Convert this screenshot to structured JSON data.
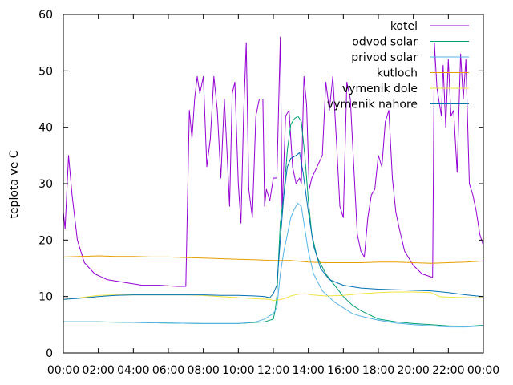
{
  "chart_data": {
    "type": "line",
    "title": "",
    "xlabel": "",
    "ylabel": "teplota ve C",
    "ylim": [
      0,
      60
    ],
    "xlim": [
      0,
      24
    ],
    "x_unit": "hours",
    "yticks": [
      "0",
      "10",
      "20",
      "30",
      "40",
      "50",
      "60"
    ],
    "xticks": [
      "00:00",
      "02:00",
      "04:00",
      "06:00",
      "08:00",
      "10:00",
      "12:00",
      "14:00",
      "16:00",
      "18:00",
      "20:00",
      "22:00",
      "00:00"
    ],
    "grid": false,
    "legend_position": "top-right",
    "series": [
      {
        "name": "kotel",
        "color": "#9400d3",
        "points": [
          [
            0,
            25
          ],
          [
            0.1,
            22
          ],
          [
            0.3,
            35
          ],
          [
            0.5,
            28
          ],
          [
            0.8,
            20
          ],
          [
            1.2,
            16
          ],
          [
            1.8,
            14
          ],
          [
            2.5,
            13
          ],
          [
            3.5,
            12.5
          ],
          [
            4.5,
            12
          ],
          [
            5.5,
            12
          ],
          [
            6.5,
            11.8
          ],
          [
            7.0,
            11.8
          ],
          [
            7.2,
            43
          ],
          [
            7.35,
            38
          ],
          [
            7.5,
            45
          ],
          [
            7.65,
            49
          ],
          [
            7.8,
            46
          ],
          [
            8.0,
            49
          ],
          [
            8.2,
            33
          ],
          [
            8.4,
            38
          ],
          [
            8.6,
            49
          ],
          [
            8.8,
            43
          ],
          [
            9.0,
            31
          ],
          [
            9.2,
            45
          ],
          [
            9.35,
            36
          ],
          [
            9.5,
            26
          ],
          [
            9.65,
            46
          ],
          [
            9.8,
            48
          ],
          [
            10.0,
            30
          ],
          [
            10.15,
            23
          ],
          [
            10.3,
            42
          ],
          [
            10.45,
            55
          ],
          [
            10.6,
            29
          ],
          [
            10.8,
            24
          ],
          [
            11.0,
            42
          ],
          [
            11.2,
            45
          ],
          [
            11.4,
            45
          ],
          [
            11.5,
            26
          ],
          [
            11.6,
            29
          ],
          [
            11.8,
            27
          ],
          [
            12.0,
            31
          ],
          [
            12.2,
            31
          ],
          [
            12.4,
            56
          ],
          [
            12.5,
            25
          ],
          [
            12.7,
            42
          ],
          [
            12.9,
            43
          ],
          [
            13.0,
            38
          ],
          [
            13.1,
            33
          ],
          [
            13.3,
            30
          ],
          [
            13.5,
            31
          ],
          [
            13.6,
            30
          ],
          [
            13.75,
            49
          ],
          [
            13.9,
            44
          ],
          [
            14.05,
            29
          ],
          [
            14.2,
            31
          ],
          [
            14.5,
            33
          ],
          [
            14.8,
            35
          ],
          [
            15.0,
            48
          ],
          [
            15.2,
            43
          ],
          [
            15.4,
            49
          ],
          [
            15.6,
            38
          ],
          [
            15.8,
            26
          ],
          [
            16.0,
            24
          ],
          [
            16.2,
            48
          ],
          [
            16.4,
            45
          ],
          [
            16.6,
            33
          ],
          [
            16.8,
            21
          ],
          [
            17.0,
            18
          ],
          [
            17.2,
            17
          ],
          [
            17.4,
            24
          ],
          [
            17.6,
            28
          ],
          [
            17.8,
            29
          ],
          [
            18.0,
            35
          ],
          [
            18.2,
            33
          ],
          [
            18.4,
            41
          ],
          [
            18.6,
            43
          ],
          [
            18.8,
            31
          ],
          [
            19.0,
            25
          ],
          [
            19.2,
            22
          ],
          [
            19.5,
            18
          ],
          [
            20.0,
            15.5
          ],
          [
            20.5,
            14
          ],
          [
            21.0,
            13.5
          ],
          [
            21.1,
            13.3
          ],
          [
            21.2,
            55
          ],
          [
            21.35,
            47
          ],
          [
            21.5,
            44
          ],
          [
            21.6,
            42
          ],
          [
            21.7,
            51
          ],
          [
            21.85,
            40
          ],
          [
            22.0,
            52
          ],
          [
            22.15,
            42
          ],
          [
            22.3,
            43
          ],
          [
            22.5,
            32
          ],
          [
            22.7,
            53
          ],
          [
            22.85,
            45
          ],
          [
            23.0,
            52
          ],
          [
            23.2,
            30
          ],
          [
            23.4,
            28
          ],
          [
            23.6,
            25
          ],
          [
            23.8,
            21
          ],
          [
            24,
            19
          ]
        ]
      },
      {
        "name": "odvod solar",
        "color": "#009e73",
        "points": [
          [
            0,
            5.5
          ],
          [
            2,
            5.5
          ],
          [
            4,
            5.4
          ],
          [
            6,
            5.3
          ],
          [
            8,
            5.2
          ],
          [
            10,
            5.2
          ],
          [
            11.5,
            5.5
          ],
          [
            12.0,
            6
          ],
          [
            12.1,
            7.5
          ],
          [
            12.2,
            10
          ],
          [
            12.3,
            17
          ],
          [
            12.4,
            23
          ],
          [
            12.6,
            28
          ],
          [
            12.8,
            36
          ],
          [
            13.0,
            40.5
          ],
          [
            13.2,
            41.5
          ],
          [
            13.4,
            42
          ],
          [
            13.6,
            41
          ],
          [
            13.8,
            35
          ],
          [
            14.0,
            27
          ],
          [
            14.2,
            21
          ],
          [
            14.5,
            17
          ],
          [
            15.0,
            14
          ],
          [
            15.5,
            12
          ],
          [
            16.0,
            10
          ],
          [
            16.5,
            8.5
          ],
          [
            17.0,
            7.5
          ],
          [
            18.0,
            6
          ],
          [
            19.0,
            5.5
          ],
          [
            20.0,
            5.2
          ],
          [
            21.0,
            5
          ],
          [
            22.0,
            4.8
          ],
          [
            23.0,
            4.7
          ],
          [
            24,
            4.9
          ]
        ]
      },
      {
        "name": "privod solar",
        "color": "#56b4e9",
        "points": [
          [
            0,
            5.5
          ],
          [
            2,
            5.5
          ],
          [
            4,
            5.4
          ],
          [
            6,
            5.3
          ],
          [
            8,
            5.2
          ],
          [
            10,
            5.2
          ],
          [
            11,
            5.5
          ],
          [
            11.5,
            6
          ],
          [
            12.0,
            7
          ],
          [
            12.2,
            8
          ],
          [
            12.4,
            14
          ],
          [
            12.6,
            18
          ],
          [
            12.8,
            21
          ],
          [
            13.0,
            24
          ],
          [
            13.2,
            25.5
          ],
          [
            13.4,
            26.5
          ],
          [
            13.6,
            26
          ],
          [
            13.8,
            22
          ],
          [
            14.0,
            18
          ],
          [
            14.3,
            14
          ],
          [
            14.8,
            11
          ],
          [
            15.5,
            9
          ],
          [
            16.0,
            8
          ],
          [
            16.5,
            7
          ],
          [
            17.0,
            6.5
          ],
          [
            18.0,
            5.8
          ],
          [
            19.0,
            5.3
          ],
          [
            20.0,
            5
          ],
          [
            21.0,
            4.8
          ],
          [
            22.0,
            4.6
          ],
          [
            23.0,
            4.6
          ],
          [
            24,
            4.8
          ]
        ]
      },
      {
        "name": "kutloch",
        "color": "#e69f00",
        "points": [
          [
            0,
            17
          ],
          [
            1,
            17.1
          ],
          [
            2,
            17.2
          ],
          [
            3,
            17.1
          ],
          [
            4,
            17.1
          ],
          [
            5,
            17
          ],
          [
            6,
            17
          ],
          [
            7,
            16.9
          ],
          [
            8,
            16.8
          ],
          [
            9,
            16.7
          ],
          [
            10,
            16.6
          ],
          [
            11,
            16.5
          ],
          [
            12,
            16.4
          ],
          [
            13,
            16.4
          ],
          [
            14,
            16.1
          ],
          [
            15,
            16
          ],
          [
            16,
            16
          ],
          [
            17,
            16
          ],
          [
            18,
            16.1
          ],
          [
            19,
            16.1
          ],
          [
            20,
            16
          ],
          [
            21,
            15.9
          ],
          [
            22,
            16
          ],
          [
            23,
            16.1
          ],
          [
            24,
            16.3
          ]
        ]
      },
      {
        "name": "vymenik dole",
        "color": "#f0e442",
        "points": [
          [
            0,
            9.5
          ],
          [
            1,
            9.8
          ],
          [
            2,
            10.2
          ],
          [
            3,
            10.3
          ],
          [
            4,
            10.3
          ],
          [
            5,
            10.3
          ],
          [
            6,
            10.3
          ],
          [
            7,
            10.3
          ],
          [
            8,
            10.2
          ],
          [
            9,
            10
          ],
          [
            10,
            9.8
          ],
          [
            11,
            9.6
          ],
          [
            11.8,
            9.5
          ],
          [
            12.0,
            9.3
          ],
          [
            12.3,
            9.4
          ],
          [
            12.6,
            9.6
          ],
          [
            13.0,
            10.1
          ],
          [
            13.4,
            10.4
          ],
          [
            13.8,
            10.5
          ],
          [
            14.2,
            10.3
          ],
          [
            15,
            10.1
          ],
          [
            16,
            10.2
          ],
          [
            17,
            10.5
          ],
          [
            18,
            10.7
          ],
          [
            19,
            10.8
          ],
          [
            20,
            10.8
          ],
          [
            21,
            10.7
          ],
          [
            21.5,
            10
          ],
          [
            22,
            9.9
          ],
          [
            23,
            9.8
          ],
          [
            24,
            9.8
          ]
        ]
      },
      {
        "name": "vymenik nahore",
        "color": "#0072b2",
        "points": [
          [
            0,
            9.5
          ],
          [
            1,
            9.7
          ],
          [
            2,
            10
          ],
          [
            3,
            10.2
          ],
          [
            4,
            10.3
          ],
          [
            5,
            10.3
          ],
          [
            6,
            10.3
          ],
          [
            7,
            10.3
          ],
          [
            8,
            10.3
          ],
          [
            9,
            10.2
          ],
          [
            10,
            10.2
          ],
          [
            11,
            10.1
          ],
          [
            11.5,
            10
          ],
          [
            11.8,
            9.8
          ],
          [
            12.0,
            10.5
          ],
          [
            12.2,
            12
          ],
          [
            12.4,
            20
          ],
          [
            12.6,
            28
          ],
          [
            12.8,
            33
          ],
          [
            13.0,
            34.5
          ],
          [
            13.3,
            35
          ],
          [
            13.5,
            35.5
          ],
          [
            13.7,
            32
          ],
          [
            14.0,
            25
          ],
          [
            14.3,
            19
          ],
          [
            14.7,
            15
          ],
          [
            15.2,
            13
          ],
          [
            16,
            12
          ],
          [
            17,
            11.5
          ],
          [
            18,
            11.3
          ],
          [
            19,
            11.2
          ],
          [
            20,
            11.1
          ],
          [
            21,
            11
          ],
          [
            22,
            10.7
          ],
          [
            23,
            10.3
          ],
          [
            24,
            10
          ]
        ]
      }
    ]
  }
}
